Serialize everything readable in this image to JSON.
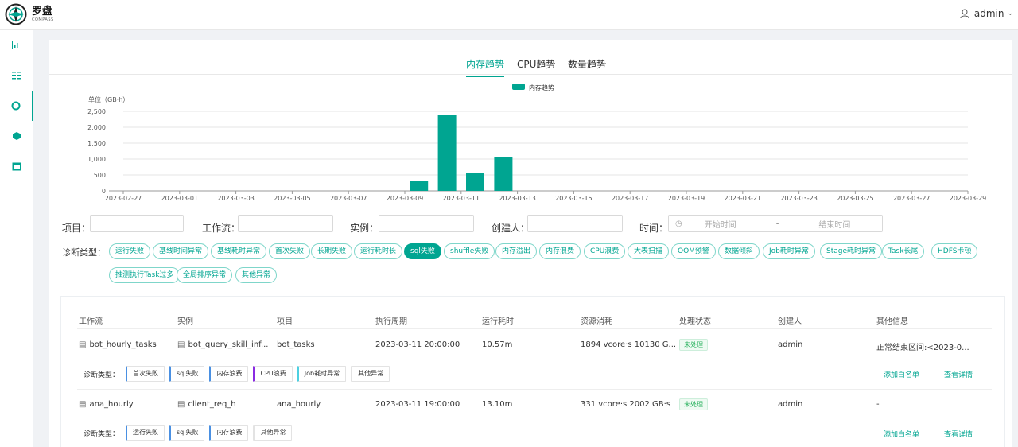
{
  "header": {
    "logo_title": "罗盘",
    "logo_sub": "COMPASS",
    "user": "admin"
  },
  "sidebar": {
    "items": [
      {
        "icon": "dashboard-icon"
      },
      {
        "icon": "list-icon"
      },
      {
        "icon": "diagnosis-icon",
        "active": true
      },
      {
        "icon": "cube-icon"
      },
      {
        "icon": "calendar-icon"
      }
    ]
  },
  "tabs": [
    {
      "label": "内存趋势",
      "active": true
    },
    {
      "label": "CPU趋势"
    },
    {
      "label": "数量趋势"
    }
  ],
  "chart_data": {
    "type": "bar",
    "legend": "内存趋势",
    "ylabel": "单位（GB·h）",
    "ylim": [
      0,
      2500
    ],
    "yticks": [
      "0",
      "500",
      "1,000",
      "1,500",
      "2,000",
      "2,500"
    ],
    "xticks": [
      "2023-02-27",
      "2023-03-01",
      "2023-03-03",
      "2023-03-05",
      "2023-03-07",
      "2023-03-09",
      "2023-03-11",
      "2023-03-13",
      "2023-03-15",
      "2023-03-17",
      "2023-03-19",
      "2023-03-21",
      "2023-03-23",
      "2023-03-25",
      "2023-03-27",
      "2023-03-29"
    ],
    "start_index": 0,
    "end_index": 30,
    "bars": [
      {
        "date": "2023-03-09",
        "index": 10,
        "value": 300
      },
      {
        "date": "2023-03-10",
        "index": 11,
        "value": 2380
      },
      {
        "date": "2023-03-11",
        "index": 12,
        "value": 560
      },
      {
        "date": "2023-03-12",
        "index": 13,
        "value": 1050
      }
    ],
    "color": "#00a591",
    "grid": true
  },
  "filters": {
    "project_label": "项目：",
    "workflow_label": "工作流：",
    "instance_label": "实例：",
    "creator_label": "创建人：",
    "time_label": "时间：",
    "start_placeholder": "开始时间",
    "separator": "-",
    "end_placeholder": "结束时间"
  },
  "diagnosis": {
    "label": "诊断类型：",
    "chips": [
      {
        "label": "运行失败"
      },
      {
        "label": "基线时间异常"
      },
      {
        "label": "基线耗时异常"
      },
      {
        "label": "首次失败"
      },
      {
        "label": "长期失败"
      },
      {
        "label": "运行耗时长"
      },
      {
        "label": "sql失败",
        "active": true
      },
      {
        "label": "shuffle失败"
      },
      {
        "label": "内存溢出"
      },
      {
        "label": "内存浪费"
      },
      {
        "label": "CPU浪费"
      },
      {
        "label": "大表扫描"
      },
      {
        "label": "OOM预警"
      },
      {
        "label": "数据倾斜"
      },
      {
        "label": "Job耗时异常"
      },
      {
        "label": "Stage耗时异常"
      },
      {
        "label": "Task长尾"
      },
      {
        "label": "HDFS卡顿"
      },
      {
        "label": "推测执行Task过多"
      },
      {
        "label": "全局排序异常"
      },
      {
        "label": "其他异常"
      }
    ]
  },
  "table": {
    "headers": [
      "工作流",
      "实例",
      "项目",
      "执行周期",
      "运行耗时",
      "资源消耗",
      "处理状态",
      "创建人",
      "其他信息"
    ],
    "rows": [
      {
        "workflow": "bot_hourly_tasks",
        "instance": "bot_query_skill_inf...",
        "project": "bot_tasks",
        "period": "2023-03-11 20:00:00",
        "duration": "10.57m",
        "resource": "1894 vcore·s 10130 G...",
        "status": "未处理",
        "creator": "admin",
        "other": "正常结束区间:<2023-0...",
        "diag_label": "诊断类型：",
        "tags": [
          {
            "label": "首次失败",
            "color": "#4a90e2"
          },
          {
            "label": "sql失败",
            "color": "#4a90e2"
          },
          {
            "label": "内存浪费",
            "color": "#4a90e2"
          },
          {
            "label": "CPU浪费",
            "color": "#8a2be2"
          },
          {
            "label": "Job耗时异常",
            "color": "#4dd0e1"
          },
          {
            "label": "其他异常",
            "color": "#e3e3e3"
          }
        ],
        "action_whitelist": "添加白名单",
        "action_detail": "查看详情"
      },
      {
        "workflow": "ana_hourly",
        "instance": "client_req_h",
        "project": "ana_hourly",
        "period": "2023-03-11 19:00:00",
        "duration": "13.10m",
        "resource": "331 vcore·s 2002 GB·s",
        "status": "未处理",
        "creator": "admin",
        "other": "-",
        "diag_label": "诊断类型：",
        "tags": [
          {
            "label": "运行失败",
            "color": "#4a90e2"
          },
          {
            "label": "sql失败",
            "color": "#4a90e2"
          },
          {
            "label": "内存浪费",
            "color": "#4a90e2"
          },
          {
            "label": "其他异常",
            "color": "#e3e3e3"
          }
        ],
        "action_whitelist": "添加白名单",
        "action_detail": "查看详情"
      }
    ]
  }
}
